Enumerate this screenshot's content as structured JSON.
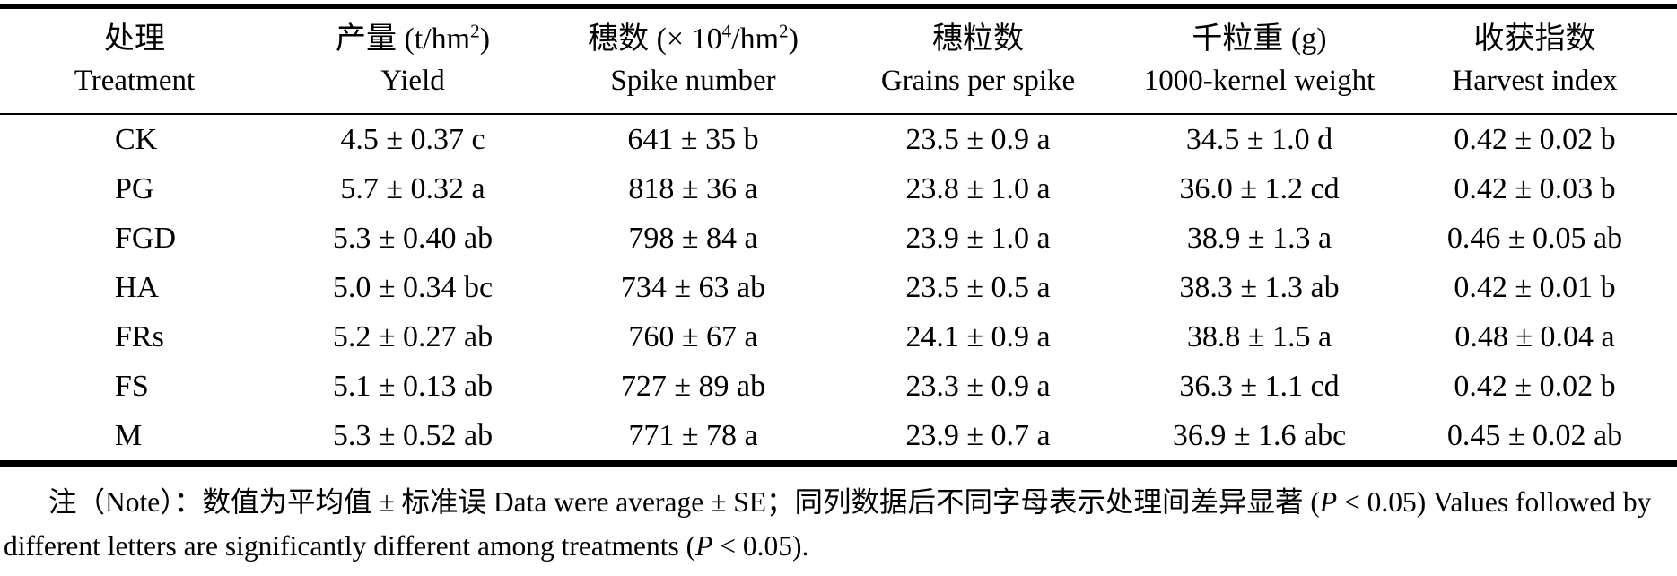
{
  "table": {
    "header": {
      "cols": [
        {
          "cn": "处理",
          "en": "Treatment"
        },
        {
          "cn_pre": "产量 (t/hm",
          "cn_sup": "2",
          "cn_post": ")",
          "en": "Yield"
        },
        {
          "cn_pre": "穗数 (× 10",
          "cn_sup": "4",
          "cn_mid": "/hm",
          "cn_sup2": "2",
          "cn_post": ")",
          "en": "Spike number"
        },
        {
          "cn": "穗粒数",
          "en": "Grains per spike"
        },
        {
          "cn": "千粒重 (g)",
          "en": "1000-kernel weight"
        },
        {
          "cn": "收获指数",
          "en": "Harvest index"
        }
      ]
    },
    "rows": [
      {
        "cells": [
          "CK",
          "4.5 ± 0.37 c",
          "641 ± 35 b",
          "23.5 ± 0.9 a",
          "34.5 ± 1.0 d",
          "0.42 ± 0.02 b"
        ]
      },
      {
        "cells": [
          "PG",
          "5.7 ± 0.32 a",
          "818 ± 36 a",
          "23.8 ± 1.0 a",
          "36.0 ± 1.2 cd",
          "0.42 ± 0.03 b"
        ]
      },
      {
        "cells": [
          "FGD",
          "5.3 ± 0.40 ab",
          "798 ± 84 a",
          "23.9 ± 1.0 a",
          "38.9 ± 1.3 a",
          "0.46 ± 0.05 ab"
        ]
      },
      {
        "cells": [
          "HA",
          "5.0 ± 0.34 bc",
          "734 ± 63 ab",
          "23.5 ± 0.5 a",
          "38.3 ± 1.3 ab",
          "0.42 ± 0.01 b"
        ]
      },
      {
        "cells": [
          "FRs",
          "5.2 ± 0.27 ab",
          "760 ± 67 a",
          "24.1 ± 0.9 a",
          "38.8 ± 1.5 a",
          "0.48 ± 0.04 a"
        ]
      },
      {
        "cells": [
          "FS",
          "5.1 ± 0.13 ab",
          "727 ± 89 ab",
          "23.3 ± 0.9 a",
          "36.3 ± 1.1 cd",
          "0.42 ± 0.02 b"
        ]
      },
      {
        "cells": [
          "M",
          "5.3 ± 0.52 ab",
          "771 ± 78 a",
          "23.9 ± 0.7 a",
          "36.9 ± 1.6 abc",
          "0.45 ± 0.02 ab"
        ]
      }
    ]
  },
  "note": {
    "s1": "注（Note）：数值为平均值 ± 标准误 Data were average ± SE；同列数据后不同字母表示处理间差异显著 (",
    "p1": "P",
    "s2": " < 0.05) Values followed by different letters are significantly different among treatments (",
    "p2": "P",
    "s3": " < 0.05)."
  },
  "colors": {
    "text": "#000000",
    "background": "#ffffff",
    "rule": "#000000"
  }
}
